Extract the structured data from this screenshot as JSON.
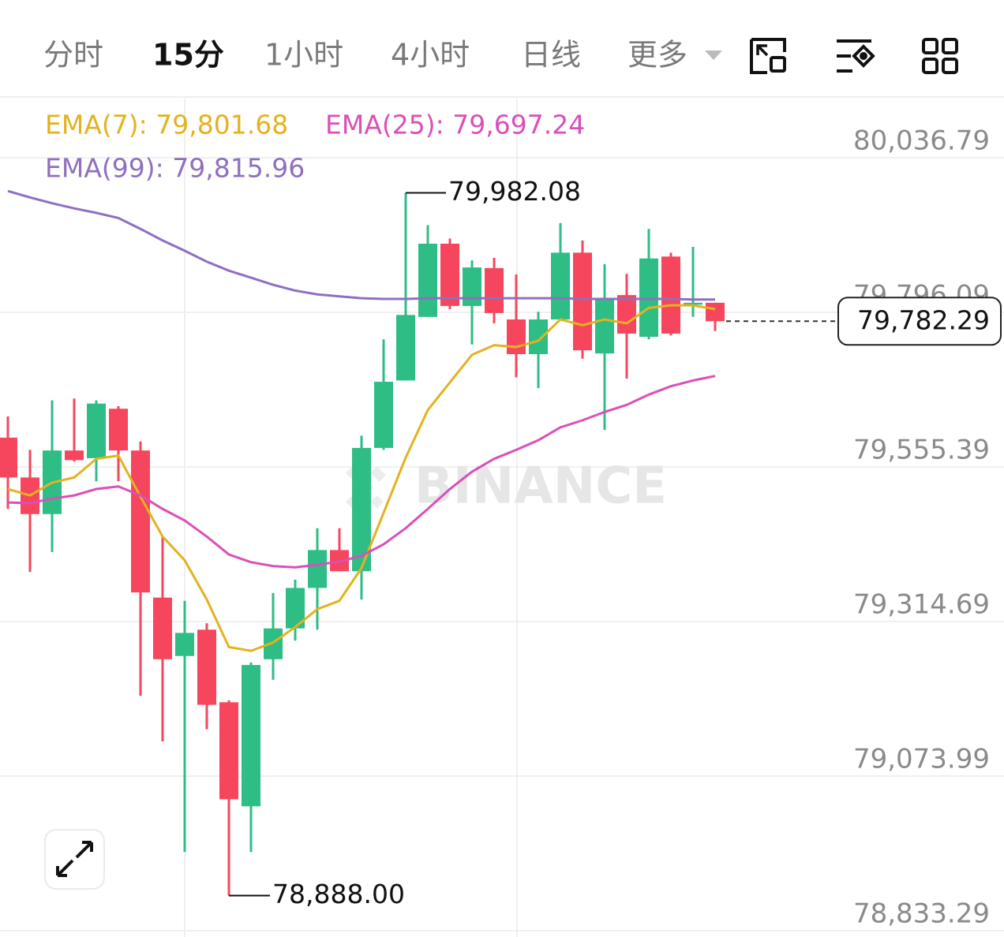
{
  "tabs": [
    "分时",
    "15分",
    "1小时",
    "4小时",
    "日线",
    "更多"
  ],
  "active_tab": 1,
  "chart_data": {
    "type": "candlestick",
    "watermark": "BINANCE",
    "up_color": "#2ebd85",
    "down_color": "#f6465d",
    "open": [
      79601,
      79539,
      79482,
      79581,
      79569,
      79646,
      79581,
      79352,
      79261,
      79302,
      79189,
      79027,
      79256,
      79304,
      79367,
      79426,
      79393,
      79585,
      79690,
      79789,
      79903,
      79806,
      79865,
      79785,
      79731,
      79785,
      79889,
      79732,
      79823,
      79758,
      79883,
      79808,
      79811
    ],
    "high": [
      79634,
      79582,
      79659,
      79662,
      79659,
      79650,
      79595,
      79447,
      79347,
      79312,
      79192,
      79251,
      79359,
      79380,
      79460,
      79460,
      79604,
      79754,
      79982.08,
      79932,
      79911,
      79877,
      79881,
      79855,
      79797,
      79935,
      79908,
      79871,
      79856,
      79926,
      79889,
      79898,
      79811
    ],
    "low": [
      79490,
      79392,
      79423,
      79564,
      79533,
      79533,
      79199,
      79128,
      78956,
      79147,
      78888.0,
      78956,
      79224,
      79285,
      79302,
      79393,
      79349,
      79582,
      79690,
      79789,
      79801,
      79746,
      79779,
      79695,
      79678,
      79785,
      79724,
      79613,
      79693,
      79754,
      79760,
      79789,
      79767
    ],
    "close": [
      79539,
      79482,
      79581,
      79566,
      79654,
      79581,
      79360,
      79256,
      79297,
      79185,
      79038,
      79247,
      79304,
      79367,
      79426,
      79393,
      79585,
      79688,
      79792,
      79903,
      79806,
      79866,
      79795,
      79731,
      79785,
      79889,
      79737,
      79816,
      79763,
      79880,
      79763,
      79811,
      79782.29
    ],
    "series": [
      {
        "name": "EMA(7): 79,801.68",
        "color": "#e4b21f",
        "values": [
          79521,
          79511,
          79531,
          79539,
          79568,
          79573,
          79509,
          79447,
          79410,
          79349,
          79275,
          79269,
          79282,
          79306,
          79334,
          79347,
          79398,
          79484,
          79570,
          79644,
          79687,
          79730,
          79745,
          79742,
          79752,
          79785,
          79776,
          79785,
          79779,
          79803,
          79807,
          79807,
          79801
        ]
      },
      {
        "name": "EMA(25): 79,697.24",
        "color": "#db4fb8",
        "values": [
          79500,
          79499,
          79506,
          79511,
          79521,
          79525,
          79511,
          79490,
          79472,
          79447,
          79419,
          79407,
          79401,
          79399,
          79403,
          79408,
          79417,
          79435,
          79460,
          79490,
          79521,
          79548,
          79568,
          79582,
          79597,
          79617,
          79628,
          79641,
          79652,
          79668,
          79681,
          79690,
          79697
        ]
      },
      {
        "name": "EMA(99): 79,815.96",
        "color": "#8f6fc0",
        "values": [
          79985,
          79975,
          79966,
          79958,
          79951,
          79943,
          79926,
          79908,
          79892,
          79875,
          79861,
          79850,
          79839,
          79830,
          79824,
          79821,
          79818,
          79817,
          79817,
          79818,
          79818,
          79818,
          79818,
          79818,
          79818,
          79818,
          79817,
          79817,
          79817,
          79817,
          79817,
          79816,
          79816
        ]
      }
    ],
    "ylim": [
      78823.5,
      80128.9
    ],
    "yticks": [
      {
        "value": 80036.79,
        "label": "80,036.79"
      },
      {
        "value": 79796.09,
        "label": "79,796.09"
      },
      {
        "value": 79555.39,
        "label": "79,555.39"
      },
      {
        "value": 79314.69,
        "label": "79,314.69"
      },
      {
        "value": 79073.99,
        "label": "79,073.99"
      },
      {
        "value": 78833.29,
        "label": "78,833.29"
      }
    ],
    "grid": true,
    "high_label": {
      "value": 79982.08,
      "label": "79,982.08"
    },
    "low_label": {
      "value": 78888.0,
      "label": "78,888.00"
    },
    "last_price": {
      "value": 79782.29,
      "label": "79,782.29"
    }
  }
}
